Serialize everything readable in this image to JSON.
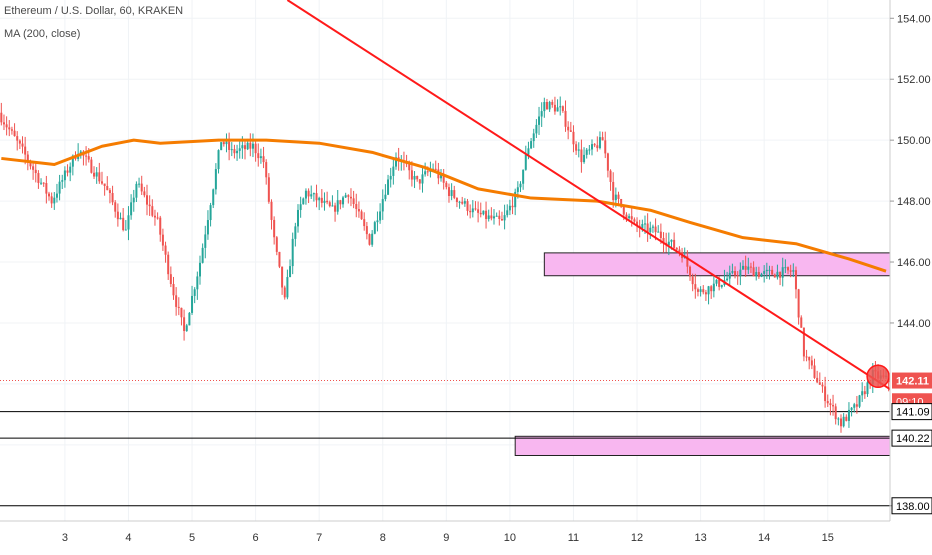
{
  "header": {
    "title": "Ethereum / U.S. Dollar, 60, KRAKEN",
    "indicator": "MA (200, close)"
  },
  "colors": {
    "background": "#ffffff",
    "grid": "#f0f3f6",
    "candle_up": "#26a69a",
    "candle_down": "#ef5350",
    "ma_line": "#f57c00",
    "trendline": "#ff1a1a",
    "zone_fill": "#f8b7f0",
    "zone_border": "#222222",
    "level_line": "#000000",
    "price_line": "#ef5350",
    "axis_text": "#333333"
  },
  "chart_data": {
    "type": "candlestick",
    "symbol": "Ethereum / U.S. Dollar",
    "timeframe": "60",
    "exchange": "KRAKEN",
    "y_axis": {
      "ticks": [
        154.0,
        152.0,
        150.0,
        148.0,
        146.0,
        144.0,
        138.0
      ],
      "ylim": [
        137.5,
        154.6
      ]
    },
    "x_axis": {
      "labels": [
        "3",
        "4",
        "5",
        "6",
        "7",
        "8",
        "9",
        "10",
        "11",
        "12",
        "13",
        "14",
        "15"
      ],
      "first_label_bar": 24,
      "bars_per_label": 24,
      "total_bars": 336
    },
    "grid": true,
    "price_anchors": [
      [
        0,
        150.9
      ],
      [
        10,
        149.5
      ],
      [
        20,
        148.0
      ],
      [
        30,
        149.7
      ],
      [
        40,
        148.5
      ],
      [
        48,
        147.0
      ],
      [
        52,
        148.6
      ],
      [
        60,
        147.3
      ],
      [
        66,
        145.0
      ],
      [
        70,
        143.7
      ],
      [
        76,
        146.0
      ],
      [
        84,
        150.0
      ],
      [
        88,
        149.6
      ],
      [
        96,
        149.8
      ],
      [
        100,
        149.3
      ],
      [
        104,
        146.7
      ],
      [
        108,
        144.7
      ],
      [
        112,
        147.3
      ],
      [
        116,
        148.3
      ],
      [
        126,
        147.7
      ],
      [
        132,
        148.3
      ],
      [
        140,
        146.7
      ],
      [
        150,
        149.5
      ],
      [
        158,
        148.6
      ],
      [
        164,
        149.1
      ],
      [
        170,
        148.3
      ],
      [
        180,
        147.6
      ],
      [
        190,
        147.3
      ],
      [
        196,
        148.3
      ],
      [
        200,
        149.8
      ],
      [
        206,
        151.2
      ],
      [
        212,
        151.0
      ],
      [
        220,
        149.4
      ],
      [
        228,
        150.0
      ],
      [
        232,
        148.2
      ],
      [
        240,
        147.2
      ],
      [
        248,
        147.0
      ],
      [
        258,
        146.3
      ],
      [
        264,
        145.0
      ],
      [
        272,
        145.3
      ],
      [
        282,
        145.8
      ],
      [
        288,
        145.6
      ],
      [
        300,
        145.7
      ],
      [
        304,
        143.0
      ],
      [
        312,
        141.6
      ],
      [
        318,
        140.7
      ],
      [
        324,
        141.3
      ],
      [
        330,
        142.3
      ],
      [
        336,
        142.1
      ]
    ],
    "moving_average": {
      "name": "MA (200, close)",
      "points": [
        [
          0,
          149.4
        ],
        [
          20,
          149.2
        ],
        [
          38,
          149.8
        ],
        [
          50,
          150.0
        ],
        [
          60,
          149.9
        ],
        [
          82,
          150.0
        ],
        [
          100,
          150.0
        ],
        [
          120,
          149.9
        ],
        [
          140,
          149.6
        ],
        [
          160,
          149.1
        ],
        [
          180,
          148.4
        ],
        [
          200,
          148.1
        ],
        [
          225,
          148.0
        ],
        [
          245,
          147.7
        ],
        [
          260,
          147.3
        ],
        [
          280,
          146.8
        ],
        [
          300,
          146.6
        ],
        [
          320,
          146.1
        ],
        [
          334,
          145.7
        ]
      ]
    },
    "trendline": {
      "name": "descending trendline",
      "from": [
        108,
        154.6
      ],
      "to": [
        336,
        141.8
      ]
    },
    "resistance_zone": {
      "name": "resistance zone",
      "x_from": 205,
      "x_to": 336,
      "y_from": 145.55,
      "y_to": 146.3
    },
    "support_zone": {
      "name": "support zone",
      "x_from": 194,
      "x_to": 336,
      "y_from": 139.65,
      "y_to": 140.28
    },
    "horizontal_levels": [
      141.09,
      140.22,
      138.0
    ],
    "last_price": 142.11,
    "marker": {
      "name": "breakout marker",
      "bar": 331,
      "price": 142.25
    },
    "price_labels": [
      {
        "text": "142.11",
        "value": 142.11,
        "style": "price"
      },
      {
        "text": "09:10",
        "value": 141.43,
        "style": "countdown"
      },
      {
        "text": "141.09",
        "value": 141.09,
        "style": "level"
      },
      {
        "text": "140.22",
        "value": 140.22,
        "style": "level"
      },
      {
        "text": "138.00",
        "value": 138.0,
        "style": "level"
      }
    ]
  }
}
